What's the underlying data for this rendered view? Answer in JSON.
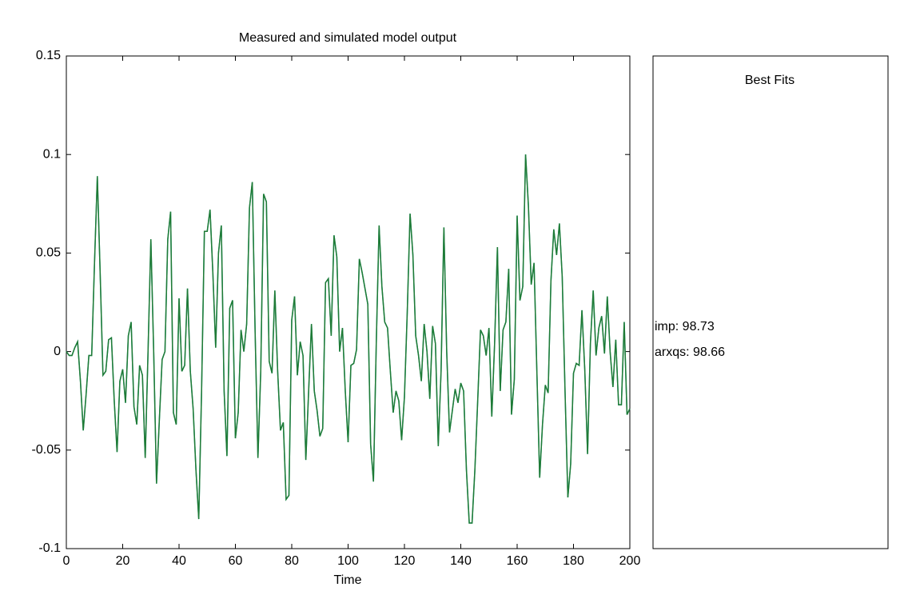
{
  "chart_data": {
    "type": "line",
    "title": "Measured and simulated model output",
    "xlabel": "Time",
    "legend_title": "Best Fits",
    "xlim": [
      0,
      200
    ],
    "xticks": [
      0,
      20,
      40,
      60,
      80,
      100,
      120,
      140,
      160,
      180,
      200
    ],
    "ylim": [
      -0.1,
      0.15
    ],
    "yticks": [
      -0.1,
      -0.05,
      0,
      0.05,
      0.1,
      0.15
    ],
    "grid": false,
    "x": [
      0,
      1,
      2,
      3,
      4,
      5,
      6,
      7,
      8,
      9,
      10,
      11,
      12,
      13,
      14,
      15,
      16,
      17,
      18,
      19,
      20,
      21,
      22,
      23,
      24,
      25,
      26,
      27,
      28,
      29,
      30,
      31,
      32,
      33,
      34,
      35,
      36,
      37,
      38,
      39,
      40,
      41,
      42,
      43,
      44,
      45,
      46,
      47,
      48,
      49,
      50,
      51,
      52,
      53,
      54,
      55,
      56,
      57,
      58,
      59,
      60,
      61,
      62,
      63,
      64,
      65,
      66,
      67,
      68,
      69,
      70,
      71,
      72,
      73,
      74,
      75,
      76,
      77,
      78,
      79,
      80,
      81,
      82,
      83,
      84,
      85,
      86,
      87,
      88,
      89,
      90,
      91,
      92,
      93,
      94,
      95,
      96,
      97,
      98,
      99,
      100,
      101,
      102,
      103,
      104,
      105,
      106,
      107,
      108,
      109,
      110,
      111,
      112,
      113,
      114,
      115,
      116,
      117,
      118,
      119,
      120,
      121,
      122,
      123,
      124,
      125,
      126,
      127,
      128,
      129,
      130,
      131,
      132,
      133,
      134,
      135,
      136,
      137,
      138,
      139,
      140,
      141,
      142,
      143,
      144,
      145,
      146,
      147,
      148,
      149,
      150,
      151,
      152,
      153,
      154,
      155,
      156,
      157,
      158,
      159,
      160,
      161,
      162,
      163,
      164,
      165,
      166,
      167,
      168,
      169,
      170,
      171,
      172,
      173,
      174,
      175,
      176,
      177,
      178,
      179,
      180,
      181,
      182,
      183,
      184,
      185,
      186,
      187,
      188,
      189,
      190,
      191,
      192,
      193,
      194,
      195,
      196,
      197,
      198,
      199,
      200
    ],
    "series": [
      {
        "name": "arxqs: 98.66",
        "color": "#3db8ad",
        "values": [
          0,
          -0.002,
          -0.002,
          0.002,
          0.005,
          -0.015,
          -0.04,
          -0.022,
          -0.002,
          -0.002,
          0.045,
          0.089,
          0.04,
          -0.012,
          -0.01,
          0.006,
          0.007,
          -0.025,
          -0.051,
          -0.015,
          -0.009,
          -0.026,
          0.008,
          0.015,
          -0.028,
          -0.037,
          -0.007,
          -0.012,
          -0.054,
          0,
          0.057,
          0,
          -0.067,
          -0.035,
          -0.004,
          0,
          0.057,
          0.071,
          -0.031,
          -0.037,
          0.027,
          -0.01,
          -0.007,
          0.032,
          -0.01,
          -0.029,
          -0.06,
          -0.085,
          -0.02,
          0.061,
          0.061,
          0.072,
          0.04,
          0.002,
          0.05,
          0.064,
          -0.02,
          -0.053,
          0.022,
          0.026,
          -0.044,
          -0.031,
          0.011,
          0,
          0.014,
          0.073,
          0.086,
          0.01,
          -0.054,
          -0.01,
          0.08,
          0.076,
          -0.005,
          -0.011,
          0.031,
          -0.01,
          -0.04,
          -0.036,
          -0.075,
          -0.073,
          0.016,
          0.028,
          -0.012,
          0.005,
          -0.002,
          -0.055,
          -0.02,
          0.014,
          -0.02,
          -0.03,
          -0.043,
          -0.039,
          0.035,
          0.037,
          0.008,
          0.059,
          0.048,
          0,
          0.012,
          -0.02,
          -0.046,
          -0.007,
          -0.006,
          0.001,
          0.047,
          0.04,
          0.032,
          0.024,
          -0.047,
          -0.066,
          0.004,
          0.064,
          0.033,
          0.015,
          0.012,
          -0.01,
          -0.031,
          -0.02,
          -0.025,
          -0.045,
          -0.023,
          0.02,
          0.07,
          0.049,
          0.008,
          -0.002,
          -0.015,
          0.014,
          0,
          -0.024,
          0.013,
          0.004,
          -0.048,
          -0.01,
          0.063,
          0,
          -0.041,
          -0.03,
          -0.019,
          -0.026,
          -0.016,
          -0.02,
          -0.06,
          -0.087,
          -0.087,
          -0.06,
          -0.025,
          0.011,
          0.008,
          -0.002,
          0.012,
          -0.033,
          0.004,
          0.053,
          -0.02,
          0.011,
          0.015,
          0.042,
          -0.032,
          -0.014,
          0.069,
          0.026,
          0.033,
          0.1,
          0.074,
          0.034,
          0.045,
          -0.01,
          -0.064,
          -0.037,
          -0.017,
          -0.021,
          0.036,
          0.062,
          0.049,
          0.065,
          0.038,
          -0.02,
          -0.074,
          -0.057,
          -0.011,
          -0.006,
          -0.007,
          0.021,
          -0.009,
          -0.052,
          0.004,
          0.031,
          -0.002,
          0.012,
          0.018,
          -0.001,
          0.028,
          0,
          -0.018,
          0.006,
          -0.027,
          -0.027,
          0.015,
          -0.032,
          -0.029
        ]
      },
      {
        "name": "imp: 98.73",
        "color": "#1f7a35",
        "values": [
          0,
          -0.002,
          -0.002,
          0.002,
          0.005,
          -0.015,
          -0.04,
          -0.022,
          -0.002,
          -0.002,
          0.045,
          0.089,
          0.04,
          -0.012,
          -0.01,
          0.006,
          0.007,
          -0.025,
          -0.051,
          -0.015,
          -0.009,
          -0.026,
          0.008,
          0.015,
          -0.028,
          -0.037,
          -0.007,
          -0.012,
          -0.054,
          0,
          0.057,
          0,
          -0.067,
          -0.035,
          -0.004,
          0,
          0.057,
          0.071,
          -0.031,
          -0.037,
          0.027,
          -0.01,
          -0.007,
          0.032,
          -0.01,
          -0.029,
          -0.06,
          -0.085,
          -0.02,
          0.061,
          0.061,
          0.072,
          0.04,
          0.002,
          0.05,
          0.064,
          -0.02,
          -0.053,
          0.022,
          0.026,
          -0.044,
          -0.031,
          0.011,
          0,
          0.014,
          0.073,
          0.086,
          0.01,
          -0.054,
          -0.01,
          0.08,
          0.076,
          -0.005,
          -0.011,
          0.031,
          -0.01,
          -0.04,
          -0.036,
          -0.075,
          -0.073,
          0.016,
          0.028,
          -0.012,
          0.005,
          -0.002,
          -0.055,
          -0.02,
          0.014,
          -0.02,
          -0.03,
          -0.043,
          -0.039,
          0.035,
          0.037,
          0.008,
          0.059,
          0.048,
          0,
          0.012,
          -0.02,
          -0.046,
          -0.007,
          -0.006,
          0.001,
          0.047,
          0.04,
          0.032,
          0.024,
          -0.047,
          -0.066,
          0.004,
          0.064,
          0.033,
          0.015,
          0.012,
          -0.01,
          -0.031,
          -0.02,
          -0.025,
          -0.045,
          -0.023,
          0.02,
          0.07,
          0.049,
          0.008,
          -0.002,
          -0.015,
          0.014,
          0,
          -0.024,
          0.013,
          0.004,
          -0.048,
          -0.01,
          0.063,
          0,
          -0.041,
          -0.03,
          -0.019,
          -0.026,
          -0.016,
          -0.02,
          -0.06,
          -0.087,
          -0.087,
          -0.06,
          -0.025,
          0.011,
          0.008,
          -0.002,
          0.012,
          -0.033,
          0.004,
          0.053,
          -0.02,
          0.011,
          0.015,
          0.042,
          -0.032,
          -0.014,
          0.069,
          0.026,
          0.033,
          0.1,
          0.074,
          0.034,
          0.045,
          -0.01,
          -0.064,
          -0.037,
          -0.017,
          -0.021,
          0.036,
          0.062,
          0.049,
          0.065,
          0.038,
          -0.02,
          -0.074,
          -0.057,
          -0.011,
          -0.006,
          -0.007,
          0.021,
          -0.009,
          -0.052,
          0.004,
          0.031,
          -0.002,
          0.012,
          0.018,
          -0.001,
          0.028,
          0,
          -0.018,
          0.006,
          -0.027,
          -0.027,
          0.015,
          -0.032,
          -0.029
        ]
      }
    ]
  }
}
